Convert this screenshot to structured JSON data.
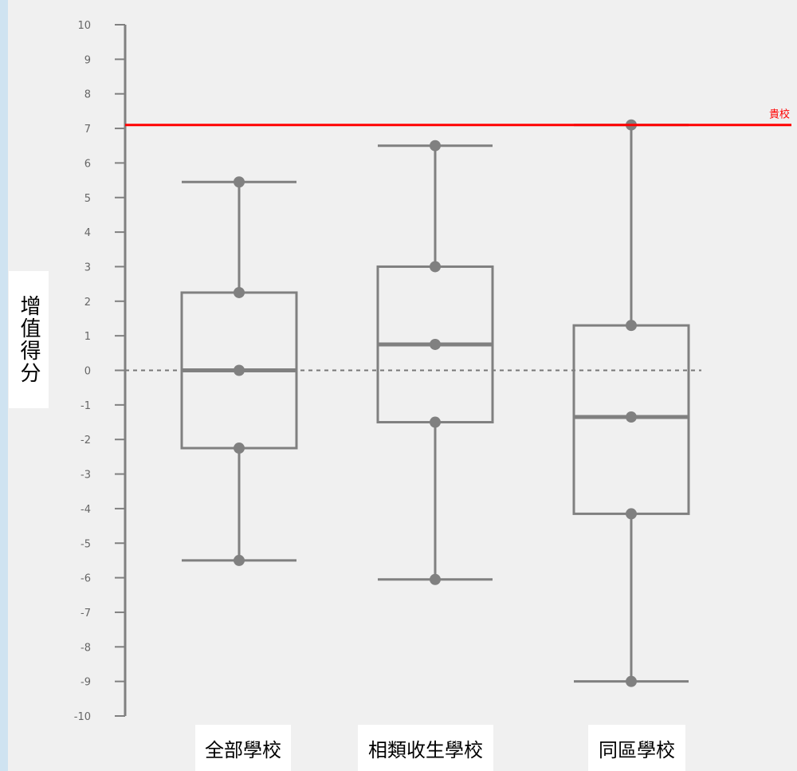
{
  "chart_data": {
    "type": "boxplot",
    "ylabel": "增值得分",
    "ylim": [
      -10,
      10
    ],
    "yticks": [
      10,
      9,
      8,
      7,
      6,
      5,
      4,
      3,
      2,
      1,
      0,
      -1,
      -2,
      -3,
      -4,
      -5,
      -6,
      -7,
      -8,
      -9,
      -10
    ],
    "categories": [
      "全部學校",
      "相類收生學校",
      "同區學校"
    ],
    "boxes": [
      {
        "whisker_low": -5.5,
        "q1": -2.25,
        "median": 0.0,
        "q3": 2.25,
        "whisker_high": 5.45
      },
      {
        "whisker_low": -6.05,
        "q1": -1.5,
        "median": 0.75,
        "q3": 3.0,
        "whisker_high": 6.5
      },
      {
        "whisker_low": -9.0,
        "q1": -4.15,
        "median": -1.35,
        "q3": 1.3,
        "whisker_high": 7.1
      }
    ],
    "reference_line": {
      "value": 7.1,
      "label": "貴校",
      "color": "#ff0000"
    },
    "zero_line": {
      "value": 0,
      "style": "dashed"
    },
    "colors": {
      "box": "#808080",
      "axis": "#808080",
      "background": "#f0f0f0"
    }
  }
}
